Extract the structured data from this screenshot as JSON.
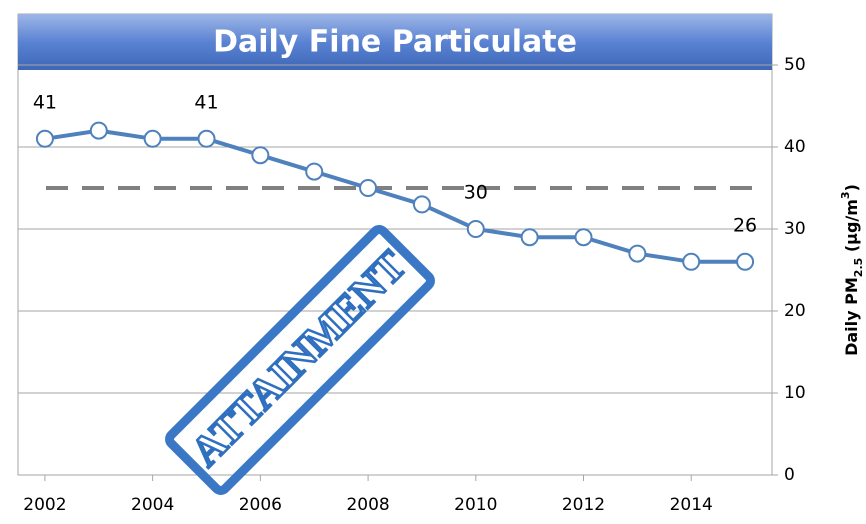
{
  "chart_data": {
    "type": "line",
    "title": "Daily Fine Particulate",
    "x": [
      2002,
      2003,
      2004,
      2005,
      2006,
      2007,
      2008,
      2009,
      2010,
      2011,
      2012,
      2013,
      2014,
      2015
    ],
    "series": [
      {
        "color": "#4f81bd",
        "values": [
          41,
          42,
          41,
          41,
          39,
          37,
          35,
          33,
          30,
          29,
          29,
          27,
          26,
          26
        ],
        "value_labels": [
          "41",
          null,
          null,
          "41",
          null,
          null,
          null,
          null,
          "30",
          null,
          null,
          null,
          null,
          "26"
        ]
      }
    ],
    "xlim": [
      2001.5,
      2015.5
    ],
    "xticks": [
      2002,
      2004,
      2006,
      2008,
      2010,
      2012,
      2014
    ],
    "ylim": [
      0,
      50
    ],
    "yticks": [
      0,
      10,
      20,
      30,
      40,
      50
    ],
    "y_label_parts": [
      "Daily PM",
      "2.5",
      " (µg/m",
      "3",
      ")"
    ],
    "reference_line": {
      "value": 35,
      "color": "#808080"
    },
    "annotation": "ATTAINMENT",
    "grid": true
  }
}
